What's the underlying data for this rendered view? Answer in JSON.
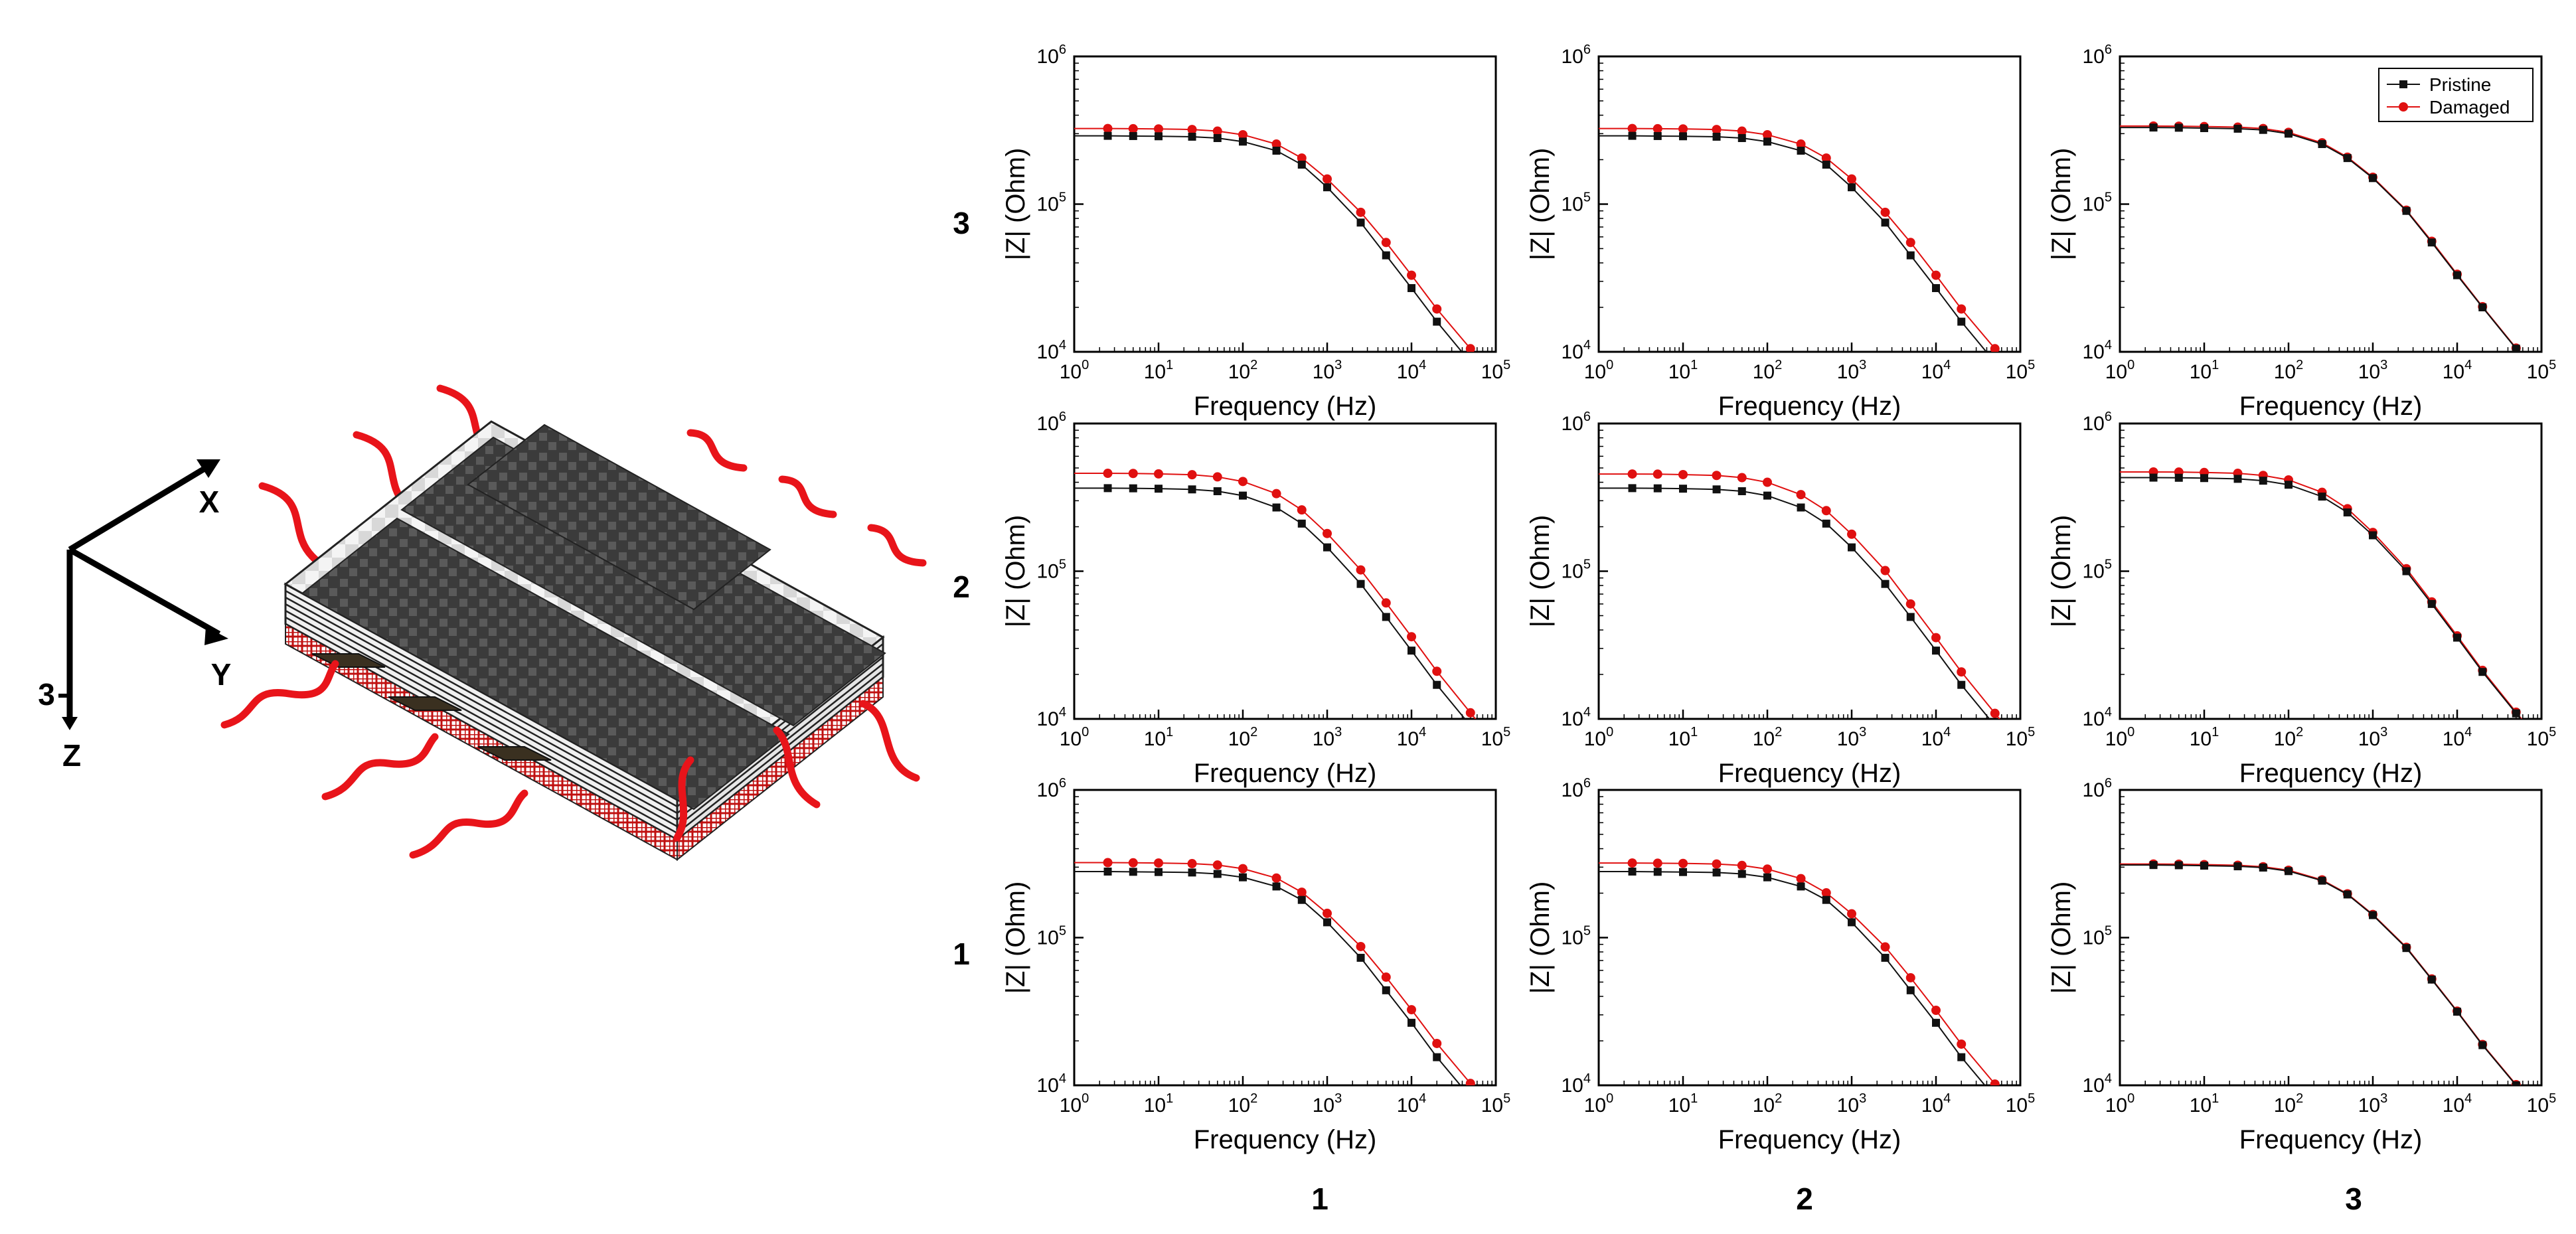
{
  "illustration": {
    "axes": {
      "x": "X",
      "y": "Y",
      "z": "Z",
      "layer_index": "3"
    }
  },
  "grid_labels": {
    "rows": [
      "3",
      "2",
      "1"
    ],
    "cols": [
      "1",
      "2",
      "3"
    ]
  },
  "colors": {
    "pristine": "#111111",
    "damaged": "#e01010",
    "wire": "#e8141a",
    "cell": "#3a3a3a",
    "stripe": "#d2d2d2",
    "copper": "#c01010"
  },
  "legend": {
    "placement": "top-right",
    "entries": [
      "Pristine",
      "Damaged"
    ]
  },
  "chart_data": [
    {
      "type": "line",
      "row": "3",
      "col": "1",
      "xlabel": "Frequency (Hz)",
      "ylabel": "|Z| (Ohm)",
      "x_scale": "log",
      "y_scale": "log",
      "xlim": [
        1,
        100000
      ],
      "ylim": [
        10000,
        1000000
      ],
      "x_ticks": [
        "10^0",
        "10^1",
        "10^2",
        "10^3",
        "10^4",
        "10^5"
      ],
      "y_ticks": [
        "10^4",
        "10^5",
        "10^6"
      ],
      "x": [
        1,
        2.5,
        5,
        10,
        25,
        50,
        100,
        250,
        500,
        1000,
        2500,
        5000,
        10000,
        20000,
        50000
      ],
      "series": [
        {
          "name": "Pristine",
          "values": [
            290000,
            290000,
            289000,
            288000,
            286000,
            280000,
            265000,
            230000,
            185000,
            130000,
            75000,
            45000,
            27000,
            16000,
            8500
          ]
        },
        {
          "name": "Damaged",
          "values": [
            325000,
            325000,
            324000,
            323000,
            320000,
            312000,
            295000,
            255000,
            205000,
            148000,
            88000,
            55000,
            33000,
            19500,
            10500
          ]
        }
      ]
    },
    {
      "type": "line",
      "row": "3",
      "col": "2",
      "xlabel": "Frequency (Hz)",
      "ylabel": "|Z| (Ohm)",
      "x_scale": "log",
      "y_scale": "log",
      "xlim": [
        1,
        100000
      ],
      "ylim": [
        10000,
        1000000
      ],
      "x_ticks": [
        "10^0",
        "10^1",
        "10^2",
        "10^3",
        "10^4",
        "10^5"
      ],
      "y_ticks": [
        "10^4",
        "10^5",
        "10^6"
      ],
      "x": [
        1,
        2.5,
        5,
        10,
        25,
        50,
        100,
        250,
        500,
        1000,
        2500,
        5000,
        10000,
        20000,
        50000
      ],
      "series": [
        {
          "name": "Pristine",
          "values": [
            290000,
            290000,
            289000,
            288000,
            286000,
            280000,
            265000,
            230000,
            185000,
            130000,
            75000,
            45000,
            27000,
            16000,
            8500
          ]
        },
        {
          "name": "Damaged",
          "values": [
            325000,
            325000,
            324000,
            323000,
            320000,
            312000,
            295000,
            255000,
            205000,
            148000,
            88000,
            55000,
            33000,
            19500,
            10500
          ]
        }
      ]
    },
    {
      "type": "line",
      "row": "3",
      "col": "3",
      "xlabel": "Frequency (Hz)",
      "ylabel": "|Z| (Ohm)",
      "x_scale": "log",
      "y_scale": "log",
      "xlim": [
        1,
        100000
      ],
      "ylim": [
        10000,
        1000000
      ],
      "x_ticks": [
        "10^0",
        "10^1",
        "10^2",
        "10^3",
        "10^4",
        "10^5"
      ],
      "y_ticks": [
        "10^4",
        "10^5",
        "10^6"
      ],
      "x": [
        1,
        2.5,
        5,
        10,
        25,
        50,
        100,
        250,
        500,
        1000,
        2500,
        5000,
        10000,
        20000,
        50000
      ],
      "series": [
        {
          "name": "Pristine",
          "values": [
            330000,
            330000,
            329000,
            327000,
            324000,
            318000,
            300000,
            255000,
            205000,
            150000,
            90000,
            55000,
            33000,
            20000,
            10500
          ]
        },
        {
          "name": "Damaged",
          "values": [
            338000,
            338000,
            337000,
            335000,
            332000,
            325000,
            306000,
            260000,
            208000,
            152000,
            91000,
            56000,
            33500,
            20200,
            10600
          ]
        }
      ]
    },
    {
      "type": "line",
      "row": "2",
      "col": "1",
      "xlabel": "Frequency (Hz)",
      "ylabel": "|Z| (Ohm)",
      "x_scale": "log",
      "y_scale": "log",
      "xlim": [
        1,
        100000
      ],
      "ylim": [
        10000,
        1000000
      ],
      "x_ticks": [
        "10^0",
        "10^1",
        "10^2",
        "10^3",
        "10^4",
        "10^5"
      ],
      "y_ticks": [
        "10^4",
        "10^5",
        "10^6"
      ],
      "x": [
        1,
        2.5,
        5,
        10,
        25,
        50,
        100,
        250,
        500,
        1000,
        2500,
        5000,
        10000,
        20000,
        50000
      ],
      "series": [
        {
          "name": "Pristine",
          "values": [
            365000,
            365000,
            364000,
            362000,
            358000,
            348000,
            325000,
            270000,
            210000,
            145000,
            82000,
            49000,
            29000,
            17000,
            9000
          ]
        },
        {
          "name": "Damaged",
          "values": [
            460000,
            460000,
            459000,
            456000,
            450000,
            435000,
            405000,
            335000,
            260000,
            180000,
            102000,
            61000,
            36000,
            21000,
            11000
          ]
        }
      ]
    },
    {
      "type": "line",
      "row": "2",
      "col": "2",
      "xlabel": "Frequency (Hz)",
      "ylabel": "|Z| (Ohm)",
      "x_scale": "log",
      "y_scale": "log",
      "xlim": [
        1,
        100000
      ],
      "ylim": [
        10000,
        1000000
      ],
      "x_ticks": [
        "10^0",
        "10^1",
        "10^2",
        "10^3",
        "10^4",
        "10^5"
      ],
      "y_ticks": [
        "10^4",
        "10^5",
        "10^6"
      ],
      "x": [
        1,
        2.5,
        5,
        10,
        25,
        50,
        100,
        250,
        500,
        1000,
        2500,
        5000,
        10000,
        20000,
        50000
      ],
      "series": [
        {
          "name": "Pristine",
          "values": [
            365000,
            365000,
            364000,
            362000,
            358000,
            348000,
            325000,
            270000,
            210000,
            145000,
            82000,
            49000,
            29000,
            17000,
            9000
          ]
        },
        {
          "name": "Damaged",
          "values": [
            455000,
            455000,
            454000,
            451000,
            445000,
            430000,
            400000,
            330000,
            257000,
            178000,
            101000,
            60000,
            35500,
            20800,
            10900
          ]
        }
      ]
    },
    {
      "type": "line",
      "row": "2",
      "col": "3",
      "xlabel": "Frequency (Hz)",
      "ylabel": "|Z| (Ohm)",
      "x_scale": "log",
      "y_scale": "log",
      "xlim": [
        1,
        100000
      ],
      "ylim": [
        10000,
        1000000
      ],
      "x_ticks": [
        "10^0",
        "10^1",
        "10^2",
        "10^3",
        "10^4",
        "10^5"
      ],
      "y_ticks": [
        "10^4",
        "10^5",
        "10^6"
      ],
      "x": [
        1,
        2.5,
        5,
        10,
        25,
        50,
        100,
        250,
        500,
        1000,
        2500,
        5000,
        10000,
        20000,
        50000
      ],
      "series": [
        {
          "name": "Pristine",
          "values": [
            430000,
            430000,
            429000,
            427000,
            422000,
            410000,
            385000,
            320000,
            250000,
            175000,
            100000,
            60000,
            35500,
            20800,
            10900
          ]
        },
        {
          "name": "Damaged",
          "values": [
            470000,
            470000,
            469000,
            466000,
            460000,
            445000,
            415000,
            342000,
            265000,
            183000,
            104000,
            62000,
            36500,
            21300,
            11100
          ]
        }
      ]
    },
    {
      "type": "line",
      "row": "1",
      "col": "1",
      "xlabel": "Frequency (Hz)",
      "ylabel": "|Z| (Ohm)",
      "x_scale": "log",
      "y_scale": "log",
      "xlim": [
        1,
        100000
      ],
      "ylim": [
        10000,
        1000000
      ],
      "x_ticks": [
        "10^0",
        "10^1",
        "10^2",
        "10^3",
        "10^4",
        "10^5"
      ],
      "y_ticks": [
        "10^4",
        "10^5",
        "10^6"
      ],
      "x": [
        1,
        2.5,
        5,
        10,
        25,
        50,
        100,
        250,
        500,
        1000,
        2500,
        5000,
        10000,
        20000,
        50000
      ],
      "series": [
        {
          "name": "Pristine",
          "values": [
            280000,
            280000,
            279000,
            278000,
            276000,
            270000,
            256000,
            222000,
            180000,
            127000,
            73000,
            44000,
            26500,
            15500,
            8300
          ]
        },
        {
          "name": "Damaged",
          "values": [
            322000,
            322000,
            321000,
            320000,
            317000,
            310000,
            293000,
            253000,
            203000,
            146000,
            87000,
            54000,
            32500,
            19200,
            10300
          ]
        }
      ]
    },
    {
      "type": "line",
      "row": "1",
      "col": "2",
      "xlabel": "Frequency (Hz)",
      "ylabel": "|Z| (Ohm)",
      "x_scale": "log",
      "y_scale": "log",
      "xlim": [
        1,
        100000
      ],
      "ylim": [
        10000,
        1000000
      ],
      "x_ticks": [
        "10^0",
        "10^1",
        "10^2",
        "10^3",
        "10^4",
        "10^5"
      ],
      "y_ticks": [
        "10^4",
        "10^5",
        "10^6"
      ],
      "x": [
        1,
        2.5,
        5,
        10,
        25,
        50,
        100,
        250,
        500,
        1000,
        2500,
        5000,
        10000,
        20000,
        50000
      ],
      "series": [
        {
          "name": "Pristine",
          "values": [
            280000,
            280000,
            279000,
            278000,
            276000,
            270000,
            256000,
            222000,
            180000,
            127000,
            73000,
            44000,
            26500,
            15500,
            8300
          ]
        },
        {
          "name": "Damaged",
          "values": [
            320000,
            320000,
            319000,
            318000,
            315000,
            308000,
            291000,
            251000,
            201000,
            145000,
            86500,
            53500,
            32200,
            19000,
            10200
          ]
        }
      ]
    },
    {
      "type": "line",
      "row": "1",
      "col": "3",
      "xlabel": "Frequency (Hz)",
      "ylabel": "|Z| (Ohm)",
      "x_scale": "log",
      "y_scale": "log",
      "xlim": [
        1,
        100000
      ],
      "ylim": [
        10000,
        1000000
      ],
      "x_ticks": [
        "10^0",
        "10^1",
        "10^2",
        "10^3",
        "10^4",
        "10^5"
      ],
      "y_ticks": [
        "10^4",
        "10^5",
        "10^6"
      ],
      "x": [
        1,
        2.5,
        5,
        10,
        25,
        50,
        100,
        250,
        500,
        1000,
        2500,
        5000,
        10000,
        20000,
        50000
      ],
      "series": [
        {
          "name": "Pristine",
          "values": [
            310000,
            310000,
            309000,
            307000,
            304000,
            298000,
            282000,
            243000,
            196000,
            142000,
            85000,
            52000,
            31500,
            18700,
            10000
          ]
        },
        {
          "name": "Damaged",
          "values": [
            315000,
            315000,
            314000,
            312000,
            309000,
            302000,
            286000,
            246000,
            198000,
            143500,
            86000,
            52500,
            31800,
            18900,
            10100
          ]
        }
      ]
    }
  ]
}
